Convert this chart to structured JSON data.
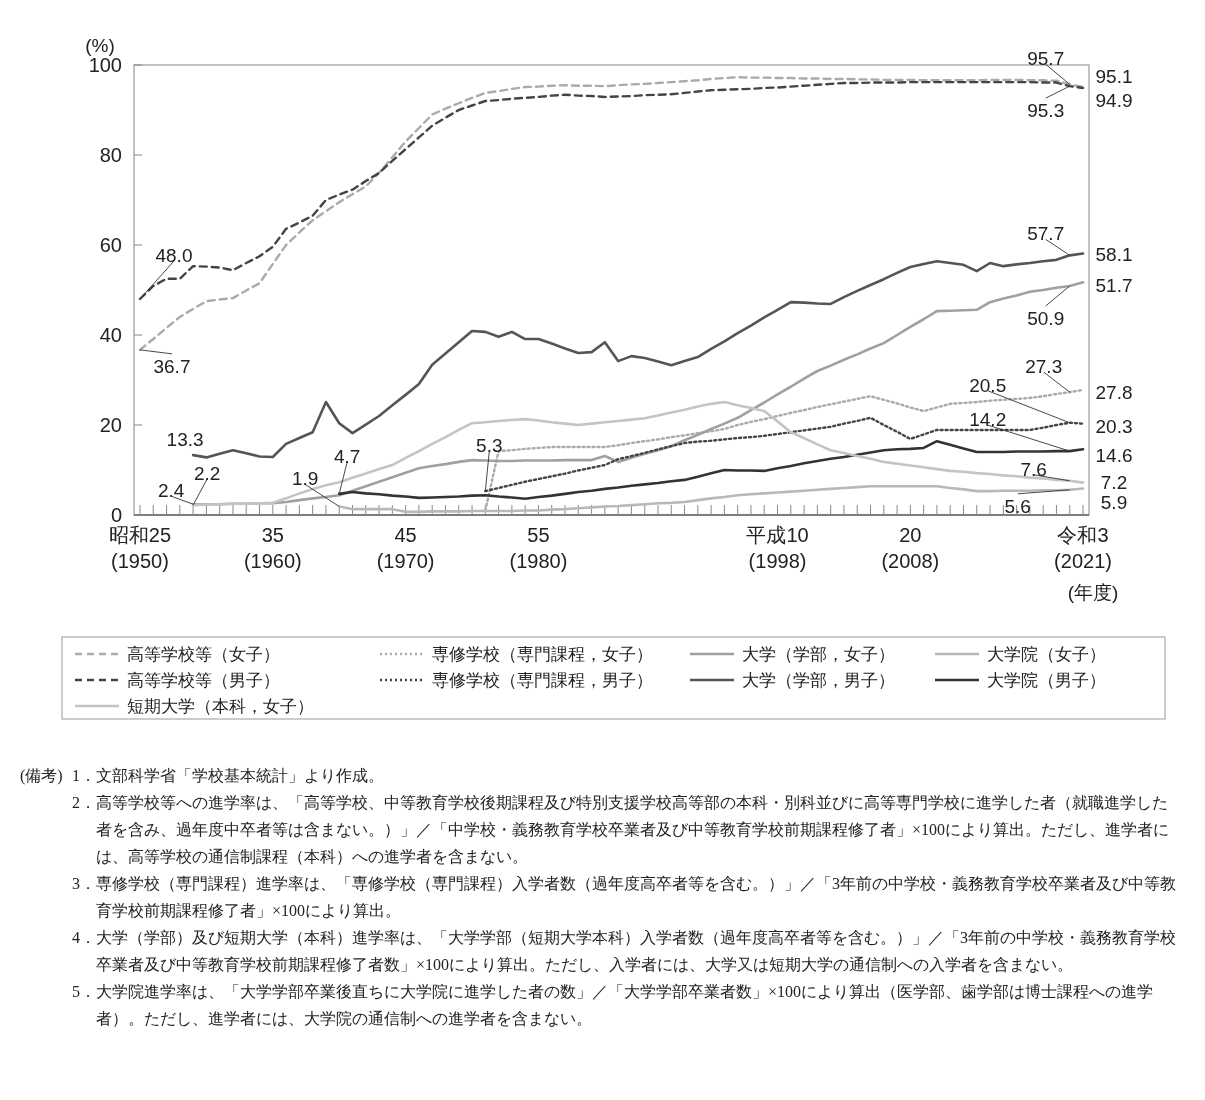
{
  "chart_data": {
    "type": "line",
    "ylabel": "(%)",
    "xlabel": "(年度)",
    "ylim": [
      0,
      100
    ],
    "yticks": [
      0,
      20,
      40,
      60,
      80,
      100
    ],
    "categories": [
      "昭和25\n(1950)",
      null,
      null,
      null,
      null,
      null,
      null,
      null,
      null,
      null,
      "35\n(1960)",
      null,
      null,
      null,
      null,
      null,
      null,
      null,
      null,
      null,
      "45\n(1970)",
      null,
      null,
      null,
      null,
      null,
      null,
      null,
      null,
      null,
      "55\n(1980)",
      null,
      null,
      null,
      null,
      null,
      null,
      null,
      null,
      null,
      null,
      null,
      null,
      null,
      null,
      null,
      null,
      null,
      "平成10\n(1998)",
      null,
      null,
      null,
      null,
      null,
      null,
      null,
      null,
      null,
      "20\n(2008)",
      null,
      null,
      null,
      null,
      null,
      null,
      null,
      null,
      null,
      null,
      null,
      null,
      "令和3\n(2021)"
    ],
    "legend": "bottom",
    "series": [
      {
        "name": "高等学校等（女子）",
        "color": "#aaaaaa",
        "line_style": "dashed",
        "values": [
          36.7,
          39.1,
          41.6,
          44.0,
          45.8,
          47.5,
          47.9,
          48.2,
          49.9,
          51.5,
          55.8,
          60.0,
          62.8,
          65.5,
          67.5,
          69.5,
          71.3,
          73.0,
          76.0,
          79.5,
          83.0,
          86.0,
          89.0,
          90.3,
          91.5,
          92.7,
          93.8,
          94.2,
          94.7,
          95.1,
          95.2,
          95.4,
          95.5,
          95.4,
          95.4,
          95.3,
          95.5,
          95.7,
          95.8,
          96.0,
          96.2,
          96.4,
          96.6,
          96.9,
          97.1,
          97.3,
          97.2,
          97.2,
          97.1,
          97.1,
          97.0,
          97.0,
          96.9,
          96.9,
          96.8,
          96.8,
          96.7,
          96.7,
          96.7,
          96.6,
          96.6,
          96.6,
          96.6,
          96.6,
          96.7,
          96.7,
          96.7,
          96.6,
          96.6,
          96.5,
          95.7,
          95.1
        ],
        "value_labels": [
          "36.7",
          null,
          null,
          null,
          null,
          null,
          null,
          null,
          null,
          null,
          null,
          null,
          null,
          null,
          null,
          null,
          null,
          null,
          null,
          null,
          null,
          null,
          null,
          null,
          null,
          null,
          null,
          null,
          null,
          null,
          null,
          null,
          null,
          null,
          null,
          null,
          null,
          null,
          null,
          null,
          null,
          null,
          null,
          null,
          null,
          null,
          null,
          null,
          null,
          null,
          null,
          null,
          null,
          null,
          null,
          null,
          null,
          null,
          null,
          null,
          null,
          null,
          null,
          null,
          null,
          null,
          null,
          null,
          null,
          null,
          "95.7",
          "95.1"
        ]
      },
      {
        "name": "専修学校（専門課程，女子）",
        "color": "#aaaaaa",
        "line_style": "dotted",
        "values": [
          null,
          null,
          null,
          null,
          null,
          null,
          null,
          null,
          null,
          null,
          null,
          null,
          null,
          null,
          null,
          null,
          null,
          null,
          null,
          null,
          null,
          null,
          null,
          null,
          null,
          null,
          1.0,
          14.2,
          14.4,
          14.7,
          14.9,
          15.1,
          15.1,
          15.1,
          15.1,
          15.1,
          15.5,
          16.0,
          16.4,
          16.8,
          17.3,
          17.7,
          18.2,
          18.6,
          19.1,
          20.0,
          20.7,
          21.3,
          22.0,
          22.7,
          23.3,
          24.0,
          24.6,
          25.2,
          25.8,
          26.4,
          25.6,
          24.8,
          23.9,
          23.1,
          23.9,
          24.7,
          24.9,
          25.1,
          25.4,
          25.6,
          25.8,
          26.0,
          26.4,
          26.9,
          27.3,
          27.8
        ],
        "value_labels": [
          null,
          null,
          null,
          null,
          null,
          null,
          null,
          null,
          null,
          null,
          null,
          null,
          null,
          null,
          null,
          null,
          null,
          null,
          null,
          null,
          null,
          null,
          null,
          null,
          null,
          null,
          null,
          null,
          null,
          null,
          null,
          null,
          null,
          null,
          null,
          null,
          null,
          null,
          null,
          null,
          null,
          null,
          null,
          null,
          null,
          null,
          null,
          null,
          null,
          null,
          null,
          null,
          null,
          null,
          null,
          null,
          null,
          null,
          null,
          null,
          null,
          null,
          null,
          null,
          null,
          null,
          null,
          null,
          null,
          null,
          "27.3",
          "27.8"
        ]
      },
      {
        "name": "大学（学部，女子）",
        "color": "#a0a0a0",
        "line_style": "solid",
        "values": [
          null,
          null,
          null,
          null,
          2.4,
          2.4,
          2.4,
          2.5,
          2.5,
          2.6,
          2.6,
          2.9,
          3.3,
          3.7,
          4.0,
          4.4,
          5.4,
          6.4,
          7.4,
          8.4,
          9.4,
          10.4,
          10.9,
          11.3,
          11.8,
          12.2,
          12.1,
          12.0,
          12.0,
          12.1,
          12.1,
          12.1,
          12.2,
          12.2,
          12.2,
          13.1,
          11.8,
          12.7,
          13.6,
          14.4,
          15.3,
          16.6,
          17.8,
          19.1,
          20.3,
          21.6,
          23.3,
          25.0,
          26.8,
          28.5,
          30.3,
          32.0,
          33.2,
          34.5,
          35.7,
          37.0,
          38.2,
          40.0,
          41.8,
          43.5,
          45.3,
          45.4,
          45.5,
          45.6,
          47.3,
          48.1,
          48.8,
          49.6,
          50.0,
          50.5,
          50.9,
          51.7
        ],
        "value_labels": [
          null,
          null,
          null,
          null,
          "2.4",
          null,
          null,
          null,
          null,
          null,
          null,
          null,
          null,
          null,
          null,
          null,
          null,
          null,
          null,
          null,
          null,
          null,
          null,
          null,
          null,
          null,
          null,
          null,
          null,
          null,
          null,
          null,
          null,
          null,
          null,
          null,
          null,
          null,
          null,
          null,
          null,
          null,
          null,
          null,
          null,
          null,
          null,
          null,
          null,
          null,
          null,
          null,
          null,
          null,
          null,
          null,
          null,
          null,
          null,
          null,
          null,
          null,
          null,
          null,
          null,
          null,
          null,
          null,
          null,
          null,
          "50.9",
          "51.7"
        ]
      },
      {
        "name": "大学院（女子）",
        "color": "#b8b8b8",
        "line_style": "solid",
        "values": [
          null,
          null,
          null,
          null,
          null,
          null,
          null,
          null,
          null,
          null,
          null,
          null,
          null,
          null,
          null,
          1.9,
          1.3,
          1.3,
          1.3,
          1.3,
          0.7,
          0.7,
          0.8,
          0.8,
          0.8,
          0.9,
          0.9,
          0.9,
          0.9,
          1.0,
          1.0,
          1.2,
          1.3,
          1.5,
          1.7,
          1.9,
          2.0,
          2.2,
          2.4,
          2.6,
          2.7,
          2.9,
          3.3,
          3.7,
          4.0,
          4.4,
          4.6,
          4.8,
          5.0,
          5.2,
          5.4,
          5.6,
          5.8,
          6.0,
          6.2,
          6.4,
          6.4,
          6.4,
          6.4,
          6.4,
          6.4,
          6.0,
          5.7,
          5.3,
          5.3,
          5.4,
          5.4,
          5.4,
          5.5,
          5.5,
          5.6,
          5.9
        ],
        "value_labels": [
          null,
          null,
          null,
          null,
          null,
          null,
          null,
          null,
          null,
          null,
          null,
          null,
          null,
          null,
          null,
          "1.9",
          null,
          null,
          null,
          null,
          null,
          null,
          null,
          null,
          null,
          null,
          null,
          null,
          null,
          null,
          null,
          null,
          null,
          null,
          null,
          null,
          null,
          null,
          null,
          null,
          null,
          null,
          null,
          null,
          null,
          null,
          null,
          null,
          null,
          null,
          null,
          null,
          null,
          null,
          null,
          null,
          null,
          null,
          null,
          null,
          null,
          null,
          null,
          null,
          null,
          null,
          null,
          null,
          null,
          null,
          "5.6",
          "5.9"
        ]
      },
      {
        "name": "高等学校等（男子）",
        "color": "#444444",
        "line_style": "dashed",
        "values": [
          48.0,
          50.9,
          52.5,
          52.5,
          55.3,
          55.2,
          55.0,
          54.4,
          56.0,
          57.5,
          59.6,
          63.6,
          65.0,
          66.5,
          70.0,
          71.2,
          72.3,
          74.2,
          76.0,
          78.7,
          81.3,
          83.9,
          86.5,
          88.3,
          90.0,
          91.0,
          92.0,
          92.2,
          92.5,
          92.7,
          92.9,
          93.2,
          93.4,
          93.2,
          93.1,
          92.9,
          93.0,
          93.1,
          93.3,
          93.4,
          93.5,
          93.8,
          94.1,
          94.4,
          94.5,
          94.6,
          94.7,
          94.9,
          95.0,
          95.2,
          95.4,
          95.6,
          95.8,
          96.0,
          96.0,
          96.1,
          96.1,
          96.1,
          96.2,
          96.2,
          96.2,
          96.2,
          96.2,
          96.2,
          96.2,
          96.2,
          96.2,
          96.2,
          96.1,
          96.1,
          95.3,
          94.9
        ],
        "value_labels": [
          "48.0",
          null,
          null,
          null,
          null,
          null,
          null,
          null,
          null,
          null,
          null,
          null,
          null,
          null,
          null,
          null,
          null,
          null,
          null,
          null,
          null,
          null,
          null,
          null,
          null,
          null,
          null,
          null,
          null,
          null,
          null,
          null,
          null,
          null,
          null,
          null,
          null,
          null,
          null,
          null,
          null,
          null,
          null,
          null,
          null,
          null,
          null,
          null,
          null,
          null,
          null,
          null,
          null,
          null,
          null,
          null,
          null,
          null,
          null,
          null,
          null,
          null,
          null,
          null,
          null,
          null,
          null,
          null,
          null,
          null,
          "95.3",
          "94.9"
        ]
      },
      {
        "name": "専修学校（専門課程，男子）",
        "color": "#444444",
        "line_style": "dotted",
        "values": [
          null,
          null,
          null,
          null,
          null,
          null,
          null,
          null,
          null,
          null,
          null,
          null,
          null,
          null,
          null,
          null,
          null,
          null,
          null,
          null,
          null,
          null,
          null,
          null,
          null,
          null,
          5.3,
          6.0,
          6.7,
          7.4,
          8.0,
          8.6,
          9.2,
          9.9,
          10.5,
          11.1,
          12.4,
          13.1,
          13.8,
          14.6,
          15.3,
          16.0,
          16.3,
          16.5,
          16.8,
          17.1,
          17.3,
          17.6,
          18.0,
          18.4,
          18.8,
          19.2,
          19.6,
          20.3,
          20.9,
          21.6,
          20.0,
          18.5,
          16.9,
          17.9,
          18.9,
          18.9,
          18.9,
          18.9,
          18.9,
          18.9,
          18.9,
          18.9,
          19.4,
          20.0,
          20.5,
          20.3
        ],
        "value_labels": [
          null,
          null,
          null,
          null,
          null,
          null,
          null,
          null,
          null,
          null,
          null,
          null,
          null,
          null,
          null,
          null,
          null,
          null,
          null,
          null,
          null,
          null,
          null,
          null,
          null,
          null,
          "5.3",
          null,
          null,
          null,
          null,
          null,
          null,
          null,
          null,
          null,
          null,
          null,
          null,
          null,
          null,
          null,
          null,
          null,
          null,
          null,
          null,
          null,
          null,
          null,
          null,
          null,
          null,
          null,
          null,
          null,
          null,
          null,
          null,
          null,
          null,
          null,
          null,
          null,
          null,
          null,
          null,
          null,
          null,
          null,
          "20.5",
          "20.3"
        ]
      },
      {
        "name": "大学（学部，男子）",
        "color": "#555555",
        "line_style": "solid",
        "values": [
          null,
          null,
          null,
          null,
          13.3,
          12.8,
          13.6,
          14.4,
          13.7,
          13.0,
          12.9,
          15.8,
          17.1,
          18.4,
          25.1,
          20.4,
          18.2,
          20.1,
          22.0,
          24.4,
          26.7,
          29.1,
          33.4,
          35.9,
          38.4,
          40.9,
          40.7,
          39.6,
          40.7,
          39.1,
          39.1,
          38.1,
          37.0,
          36.0,
          36.2,
          38.4,
          34.2,
          35.3,
          34.9,
          34.1,
          33.3,
          34.2,
          35.1,
          36.9,
          38.6,
          40.4,
          42.1,
          43.9,
          45.6,
          47.3,
          47.2,
          47.0,
          46.9,
          48.4,
          49.8,
          51.1,
          52.4,
          53.8,
          55.1,
          55.8,
          56.4,
          56.0,
          55.6,
          54.2,
          56.0,
          55.3,
          55.7,
          56.0,
          56.4,
          56.7,
          57.7,
          58.1
        ],
        "value_labels": [
          null,
          null,
          null,
          null,
          "13.3",
          null,
          null,
          null,
          null,
          null,
          null,
          null,
          null,
          null,
          null,
          null,
          null,
          null,
          null,
          null,
          null,
          null,
          null,
          null,
          null,
          null,
          null,
          null,
          null,
          null,
          null,
          null,
          null,
          null,
          null,
          null,
          null,
          null,
          null,
          null,
          null,
          null,
          null,
          null,
          null,
          null,
          null,
          null,
          null,
          null,
          null,
          null,
          null,
          null,
          null,
          null,
          null,
          null,
          null,
          null,
          null,
          null,
          null,
          null,
          null,
          null,
          null,
          null,
          null,
          null,
          "57.7",
          "58.1"
        ]
      },
      {
        "name": "大学院（男子）",
        "color": "#333333",
        "line_style": "solid",
        "values": [
          null,
          null,
          null,
          null,
          null,
          null,
          null,
          null,
          null,
          null,
          null,
          null,
          null,
          null,
          null,
          4.7,
          5.1,
          4.8,
          4.6,
          4.3,
          4.1,
          3.8,
          3.9,
          4.0,
          4.1,
          4.3,
          4.4,
          4.1,
          3.9,
          3.6,
          4.0,
          4.3,
          4.7,
          5.1,
          5.4,
          5.8,
          6.1,
          6.5,
          6.8,
          7.1,
          7.5,
          7.8,
          8.5,
          9.3,
          10.0,
          9.9,
          9.9,
          9.8,
          10.4,
          10.9,
          11.5,
          12.0,
          12.5,
          12.9,
          13.4,
          13.9,
          14.4,
          14.6,
          14.7,
          14.9,
          16.4,
          15.6,
          14.8,
          14.0,
          14.0,
          14.0,
          14.1,
          14.1,
          14.1,
          14.2,
          14.2,
          14.6
        ],
        "value_labels": [
          null,
          null,
          null,
          null,
          null,
          null,
          null,
          null,
          null,
          null,
          null,
          null,
          null,
          null,
          null,
          "4.7",
          null,
          null,
          null,
          null,
          null,
          null,
          null,
          null,
          null,
          null,
          null,
          null,
          null,
          null,
          null,
          null,
          null,
          null,
          null,
          null,
          null,
          null,
          null,
          null,
          null,
          null,
          null,
          null,
          null,
          null,
          null,
          null,
          null,
          null,
          null,
          null,
          null,
          null,
          null,
          null,
          null,
          null,
          null,
          null,
          null,
          null,
          null,
          null,
          null,
          null,
          null,
          null,
          null,
          null,
          "14.2",
          "14.6"
        ]
      },
      {
        "name": "短期大学（本科，女子）",
        "color": "#c4c4c4",
        "line_style": "solid",
        "values": [
          null,
          null,
          null,
          null,
          2.2,
          2.3,
          2.4,
          2.5,
          2.5,
          2.6,
          2.7,
          3.7,
          4.8,
          5.8,
          6.6,
          7.3,
          8.3,
          9.2,
          10.2,
          11.1,
          12.7,
          14.2,
          15.8,
          17.3,
          18.9,
          20.4,
          20.6,
          20.9,
          21.1,
          21.3,
          21.0,
          20.6,
          20.3,
          20.0,
          20.3,
          20.6,
          20.9,
          21.2,
          21.5,
          22.1,
          22.8,
          23.4,
          24.1,
          24.7,
          25.1,
          24.4,
          23.8,
          23.1,
          20.8,
          18.4,
          17.1,
          15.7,
          14.4,
          13.8,
          13.1,
          12.5,
          11.8,
          11.4,
          11.0,
          10.6,
          10.2,
          9.8,
          9.6,
          9.3,
          9.1,
          8.8,
          8.6,
          8.3,
          8.1,
          7.8,
          7.6,
          7.2
        ],
        "value_labels": [
          null,
          null,
          null,
          null,
          "2.2",
          null,
          null,
          null,
          null,
          null,
          null,
          null,
          null,
          null,
          null,
          null,
          null,
          null,
          null,
          null,
          null,
          null,
          null,
          null,
          null,
          null,
          null,
          null,
          null,
          null,
          null,
          null,
          null,
          null,
          null,
          null,
          null,
          null,
          null,
          null,
          null,
          null,
          null,
          null,
          null,
          null,
          null,
          null,
          null,
          null,
          null,
          null,
          null,
          null,
          null,
          null,
          null,
          null,
          null,
          null,
          null,
          null,
          null,
          null,
          null,
          null,
          null,
          null,
          null,
          null,
          "7.6",
          "7.2"
        ]
      }
    ],
    "annotations": [
      "(備考)",
      "1．文部科学省「学校基本統計」より作成。",
      "2．高等学校等への進学率は、「高等学校、中等教育学校後期課程及び特別支援学校高等部の本科・別科並びに高等専門学校に進学した者（就職進学した者を含み、過年度中卒者等は含まない。）」／「中学校・義務教育学校卒業者及び中等教育学校前期課程修了者」×100により算出。ただし、進学者には、高等学校の通信制課程（本科）への進学者を含まない。",
      "3．専修学校（専門課程）進学率は、「専修学校（専門課程）入学者数（過年度高卒者等を含む。）」／「3年前の中学校・義務教育学校卒業者及び中等教育学校前期課程修了者」×100により算出。",
      "4．大学（学部）及び短期大学（本科）進学率は、「大学学部（短期大学本科）入学者数（過年度高卒者等を含む。）」／「3年前の中学校・義務教育学校卒業者及び中等教育学校前期課程修了者数」×100により算出。ただし、入学者には、大学又は短期大学の通信制への入学者を含まない。",
      "5．大学院進学率は、「大学学部卒業後直ちに大学院に進学した者の数」／「大学学部卒業者数」×100により算出（医学部、歯学部は博士課程への進学者）。ただし、進学者には、大学院の通信制への進学者を含まない。"
    ]
  }
}
